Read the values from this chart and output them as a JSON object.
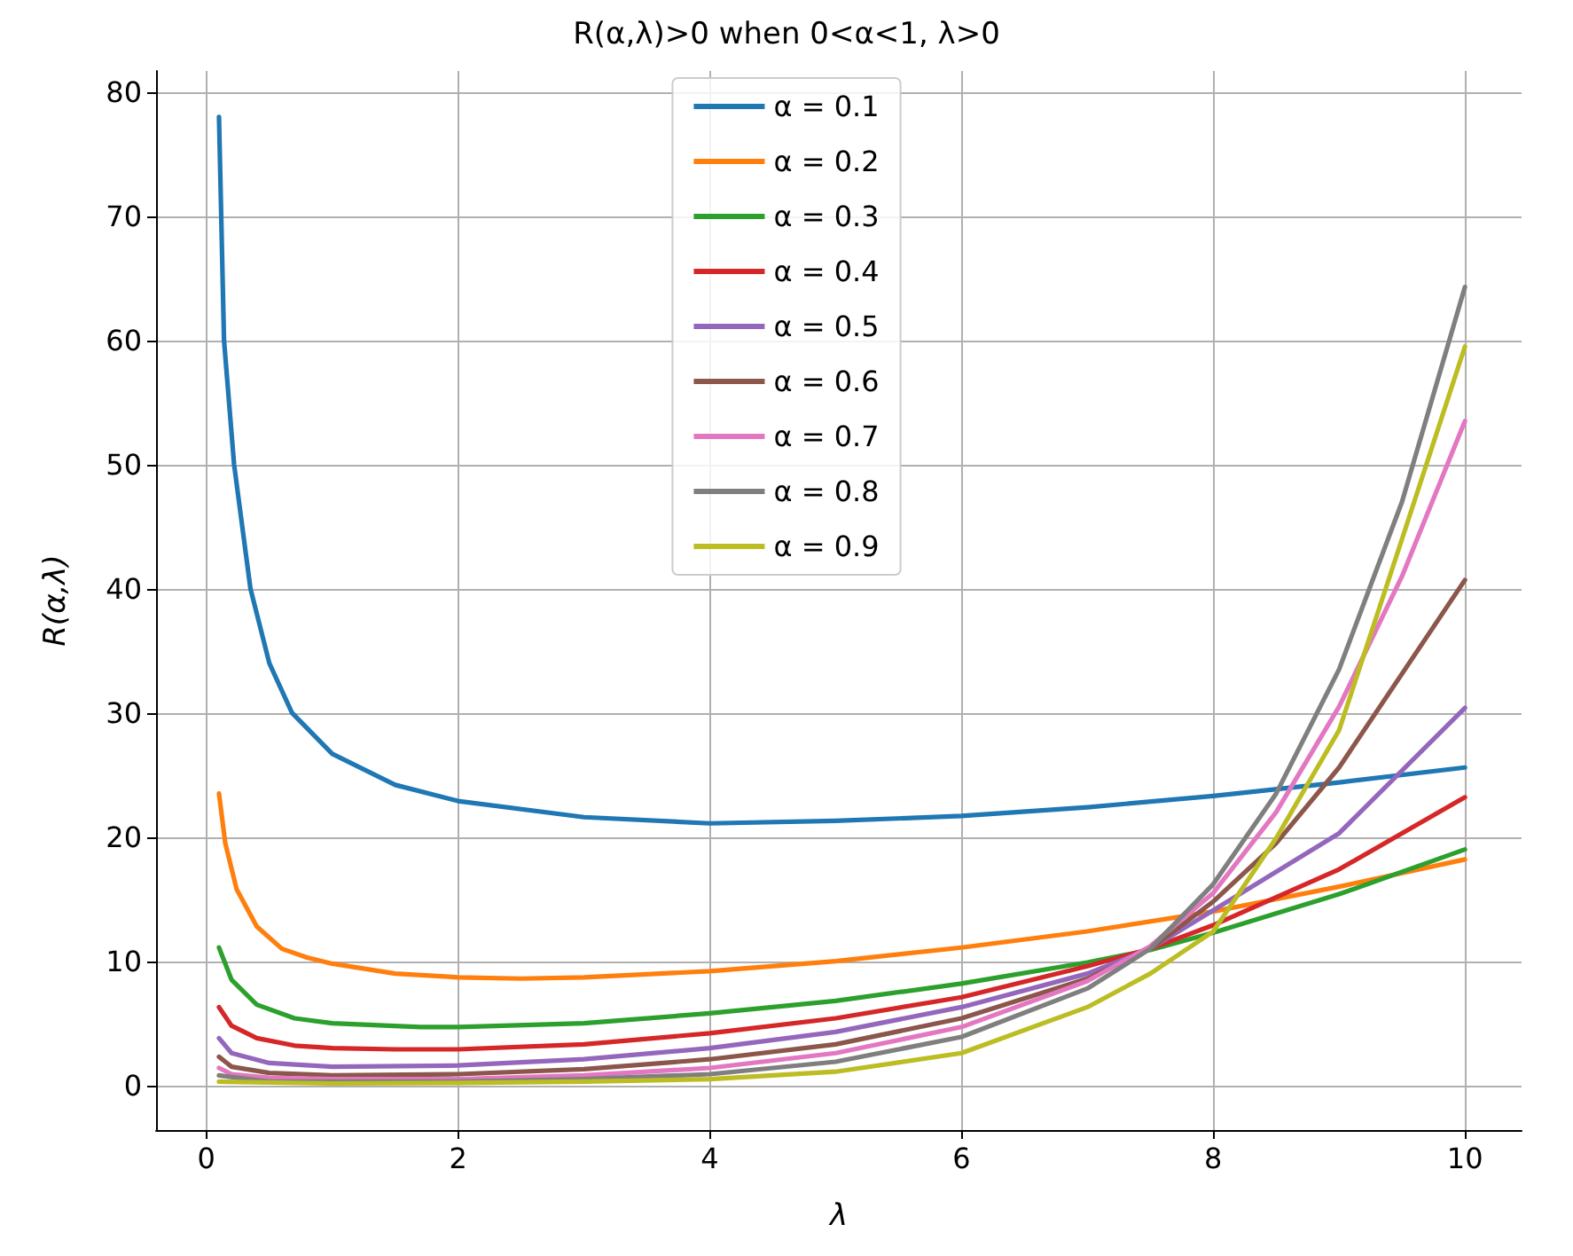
{
  "chart_data": {
    "type": "line",
    "title": "R(α,λ)>0 when 0<α<1, λ>0",
    "xlabel": "λ",
    "ylabel": "R(α,λ)",
    "xlim": [
      -0.4,
      10.45
    ],
    "ylim": [
      -3.6,
      81.7
    ],
    "xticks": [
      0,
      2,
      4,
      6,
      8,
      10
    ],
    "yticks": [
      0,
      10,
      20,
      30,
      40,
      50,
      60,
      70,
      80
    ],
    "grid": true,
    "legend": "top",
    "marker": "none",
    "line_style": "solid",
    "series": [
      {
        "name": "α = 0.1",
        "color": "#1f77b4",
        "x": [
          0.1,
          0.14,
          0.22,
          0.35,
          0.5,
          0.68,
          1,
          1.5,
          2,
          3,
          4,
          5,
          6,
          7,
          8,
          9,
          10
        ],
        "values": [
          78,
          60,
          50,
          40,
          34,
          30,
          26.7,
          24.2,
          22.9,
          21.6,
          21.1,
          21.3,
          21.7,
          22.4,
          23.3,
          24.4,
          25.6
        ]
      },
      {
        "name": "α = 0.2",
        "color": "#ff7f0e",
        "x": [
          0.1,
          0.15,
          0.24,
          0.4,
          0.6,
          0.8,
          1,
          1.5,
          2,
          2.5,
          3,
          4,
          5,
          6,
          7,
          8,
          9,
          10
        ],
        "values": [
          23.5,
          19.5,
          15.8,
          12.8,
          11,
          10.3,
          9.8,
          9.0,
          8.7,
          8.6,
          8.7,
          9.2,
          10,
          11.1,
          12.4,
          14.0,
          16,
          18.2
        ]
      },
      {
        "name": "α = 0.3",
        "color": "#2ca02c",
        "x": [
          0.1,
          0.2,
          0.4,
          0.7,
          1,
          1.7,
          2,
          3,
          4,
          5,
          6,
          7,
          7.5,
          8,
          9,
          10
        ],
        "values": [
          11.1,
          8.5,
          6.5,
          5.4,
          5.0,
          4.7,
          4.7,
          5.0,
          5.8,
          6.8,
          8.2,
          9.9,
          10.9,
          12.3,
          15.4,
          19.0
        ]
      },
      {
        "name": "α = 0.4",
        "color": "#d62728",
        "x": [
          0.1,
          0.2,
          0.4,
          0.7,
          1,
          1.5,
          2,
          3,
          4,
          5,
          6,
          7,
          7.5,
          8,
          9,
          10
        ],
        "values": [
          6.3,
          4.8,
          3.8,
          3.2,
          3.0,
          2.9,
          2.9,
          3.3,
          4.2,
          5.4,
          7.1,
          9.6,
          11.0,
          12.9,
          17.4,
          23.2
        ]
      },
      {
        "name": "α = 0.5",
        "color": "#9467bd",
        "x": [
          0.1,
          0.2,
          0.5,
          1,
          2,
          3,
          4,
          5,
          6,
          7,
          7.5,
          8,
          9,
          10
        ],
        "values": [
          3.8,
          2.6,
          1.8,
          1.5,
          1.6,
          2.1,
          3.0,
          4.3,
          6.3,
          9.0,
          11.0,
          14.1,
          20.3,
          30.4
        ]
      },
      {
        "name": "α = 0.6",
        "color": "#8c564b",
        "x": [
          0.1,
          0.2,
          0.5,
          1,
          2,
          3,
          4,
          5,
          6,
          7,
          7.5,
          8,
          8.5,
          9,
          10
        ],
        "values": [
          2.3,
          1.5,
          1.0,
          0.8,
          0.9,
          1.3,
          2.1,
          3.3,
          5.4,
          8.6,
          11.0,
          14.8,
          19.5,
          25.6,
          40.7
        ]
      },
      {
        "name": "α = 0.7",
        "color": "#e377c2",
        "x": [
          0.1,
          0.2,
          0.5,
          1,
          2,
          3,
          4,
          5,
          6,
          7,
          7.5,
          8,
          8.5,
          9,
          9.5,
          10
        ],
        "values": [
          1.4,
          0.9,
          0.6,
          0.5,
          0.5,
          0.8,
          1.4,
          2.6,
          4.7,
          8.4,
          11.2,
          15.5,
          22,
          30.5,
          41,
          53.5
        ]
      },
      {
        "name": "α = 0.8",
        "color": "#7f7f7f",
        "x": [
          0.1,
          0.5,
          1,
          2,
          3,
          4,
          5,
          6,
          7,
          7.5,
          8,
          8.5,
          9,
          9.5,
          10
        ],
        "values": [
          0.8,
          0.3,
          0.3,
          0.3,
          0.5,
          0.9,
          1.9,
          3.9,
          7.8,
          11.0,
          16.2,
          23.5,
          33.5,
          47,
          64.3
        ]
      },
      {
        "name": "α = 0.9",
        "color": "#bcbd22",
        "x": [
          0.1,
          1,
          2,
          3,
          4,
          5,
          6,
          7,
          7.5,
          8,
          8.5,
          9,
          9.5,
          10
        ],
        "values": [
          0.3,
          0.15,
          0.2,
          0.3,
          0.5,
          1.1,
          2.6,
          6.3,
          9.0,
          12.4,
          19.9,
          28.6,
          44,
          59.5
        ]
      }
    ]
  }
}
